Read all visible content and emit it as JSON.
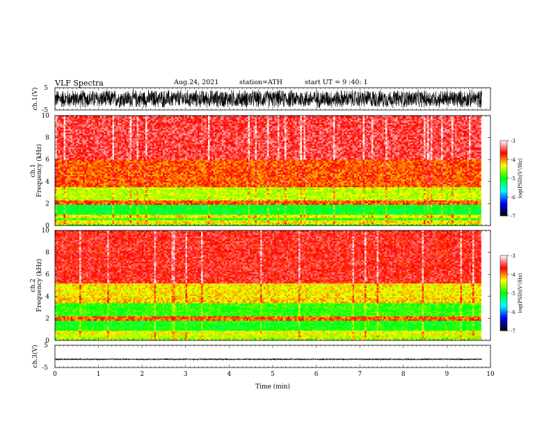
{
  "header": {
    "title": "VLF Spectra",
    "date": "Aug.24, 2021",
    "station": "station=ATH",
    "start": "start UT = 9 :40: 1"
  },
  "chart_data": [
    {
      "type": "line",
      "panel": "ch1-waveform",
      "ylabel": "ch.1(V)",
      "ylim": [
        -5,
        5
      ],
      "yticks": [
        "5",
        "-5"
      ],
      "xlim": [
        0,
        10
      ],
      "x_data_end": 9.8,
      "amplitude": [
        -4.5,
        4.5
      ]
    },
    {
      "type": "heatmap",
      "panel": "ch1-spectrogram",
      "ylabel_line1": "ch.1",
      "ylabel_line2": "Frequency (kHz)",
      "ylim": [
        0,
        10
      ],
      "yticks": [
        "0",
        "2",
        "4",
        "6",
        "8",
        "10"
      ],
      "xlim": [
        0,
        10
      ],
      "x_data_end": 9.8,
      "bands_khz": [
        {
          "from": 0,
          "to": 0.15,
          "level": -4.7
        },
        {
          "from": 0.15,
          "to": 0.5,
          "level": -4.3
        },
        {
          "from": 0.5,
          "to": 0.7,
          "level": -4.9
        },
        {
          "from": 0.7,
          "to": 1.0,
          "level": -4.3
        },
        {
          "from": 1.0,
          "to": 1.9,
          "level": -5.1
        },
        {
          "from": 1.9,
          "to": 2.3,
          "level": -3.9
        },
        {
          "from": 2.3,
          "to": 3.5,
          "level": -4.5
        },
        {
          "from": 3.5,
          "to": 6.0,
          "level": -3.9
        },
        {
          "from": 6.0,
          "to": 10.0,
          "level": -3.5
        }
      ],
      "colorbar": {
        "label": "log(PSD)(V²/Hz)",
        "range": [
          -7,
          -3
        ],
        "ticks": [
          "-3",
          "-4",
          "-5",
          "-6",
          "-7"
        ]
      }
    },
    {
      "type": "heatmap",
      "panel": "ch2-spectrogram",
      "ylabel_line1": "ch.2",
      "ylabel_line2": "Frequency (kHz)",
      "ylim": [
        0,
        10
      ],
      "yticks": [
        "0",
        "2",
        "4",
        "6",
        "8",
        "10"
      ],
      "xlim": [
        0,
        10
      ],
      "x_data_end": 9.8,
      "bands_khz": [
        {
          "from": 0,
          "to": 0.3,
          "level": -4.6
        },
        {
          "from": 0.3,
          "to": 0.9,
          "level": -4.4
        },
        {
          "from": 0.9,
          "to": 1.8,
          "level": -5.0
        },
        {
          "from": 1.8,
          "to": 2.2,
          "level": -3.9
        },
        {
          "from": 2.2,
          "to": 3.4,
          "level": -4.9
        },
        {
          "from": 3.4,
          "to": 3.9,
          "level": -4.2
        },
        {
          "from": 3.9,
          "to": 5.2,
          "level": -4.3
        },
        {
          "from": 5.2,
          "to": 10.0,
          "level": -3.6
        }
      ],
      "colorbar": {
        "label": "log(PSD)(V²/Hz)",
        "range": [
          -7,
          -3
        ],
        "ticks": [
          "-3",
          "-4",
          "-5",
          "-6",
          "-7"
        ]
      }
    },
    {
      "type": "line",
      "panel": "ch3-waveform",
      "ylabel": "ch.3(V)",
      "ylim": [
        -5,
        5
      ],
      "yticks": [
        "5",
        "-5"
      ],
      "xlim": [
        0,
        10
      ],
      "x_data_end": 9.8,
      "amplitude": [
        -0.35,
        0.35
      ],
      "offset": -1.3
    }
  ],
  "xaxis": {
    "label": "Time (min)",
    "ticks": [
      "0",
      "1",
      "2",
      "3",
      "4",
      "5",
      "6",
      "7",
      "8",
      "9",
      "10"
    ]
  },
  "colors": {
    "scale": [
      "#000000",
      "#0000ff",
      "#00ffff",
      "#00ff00",
      "#ffff00",
      "#ff0000",
      "#ffffff"
    ]
  }
}
